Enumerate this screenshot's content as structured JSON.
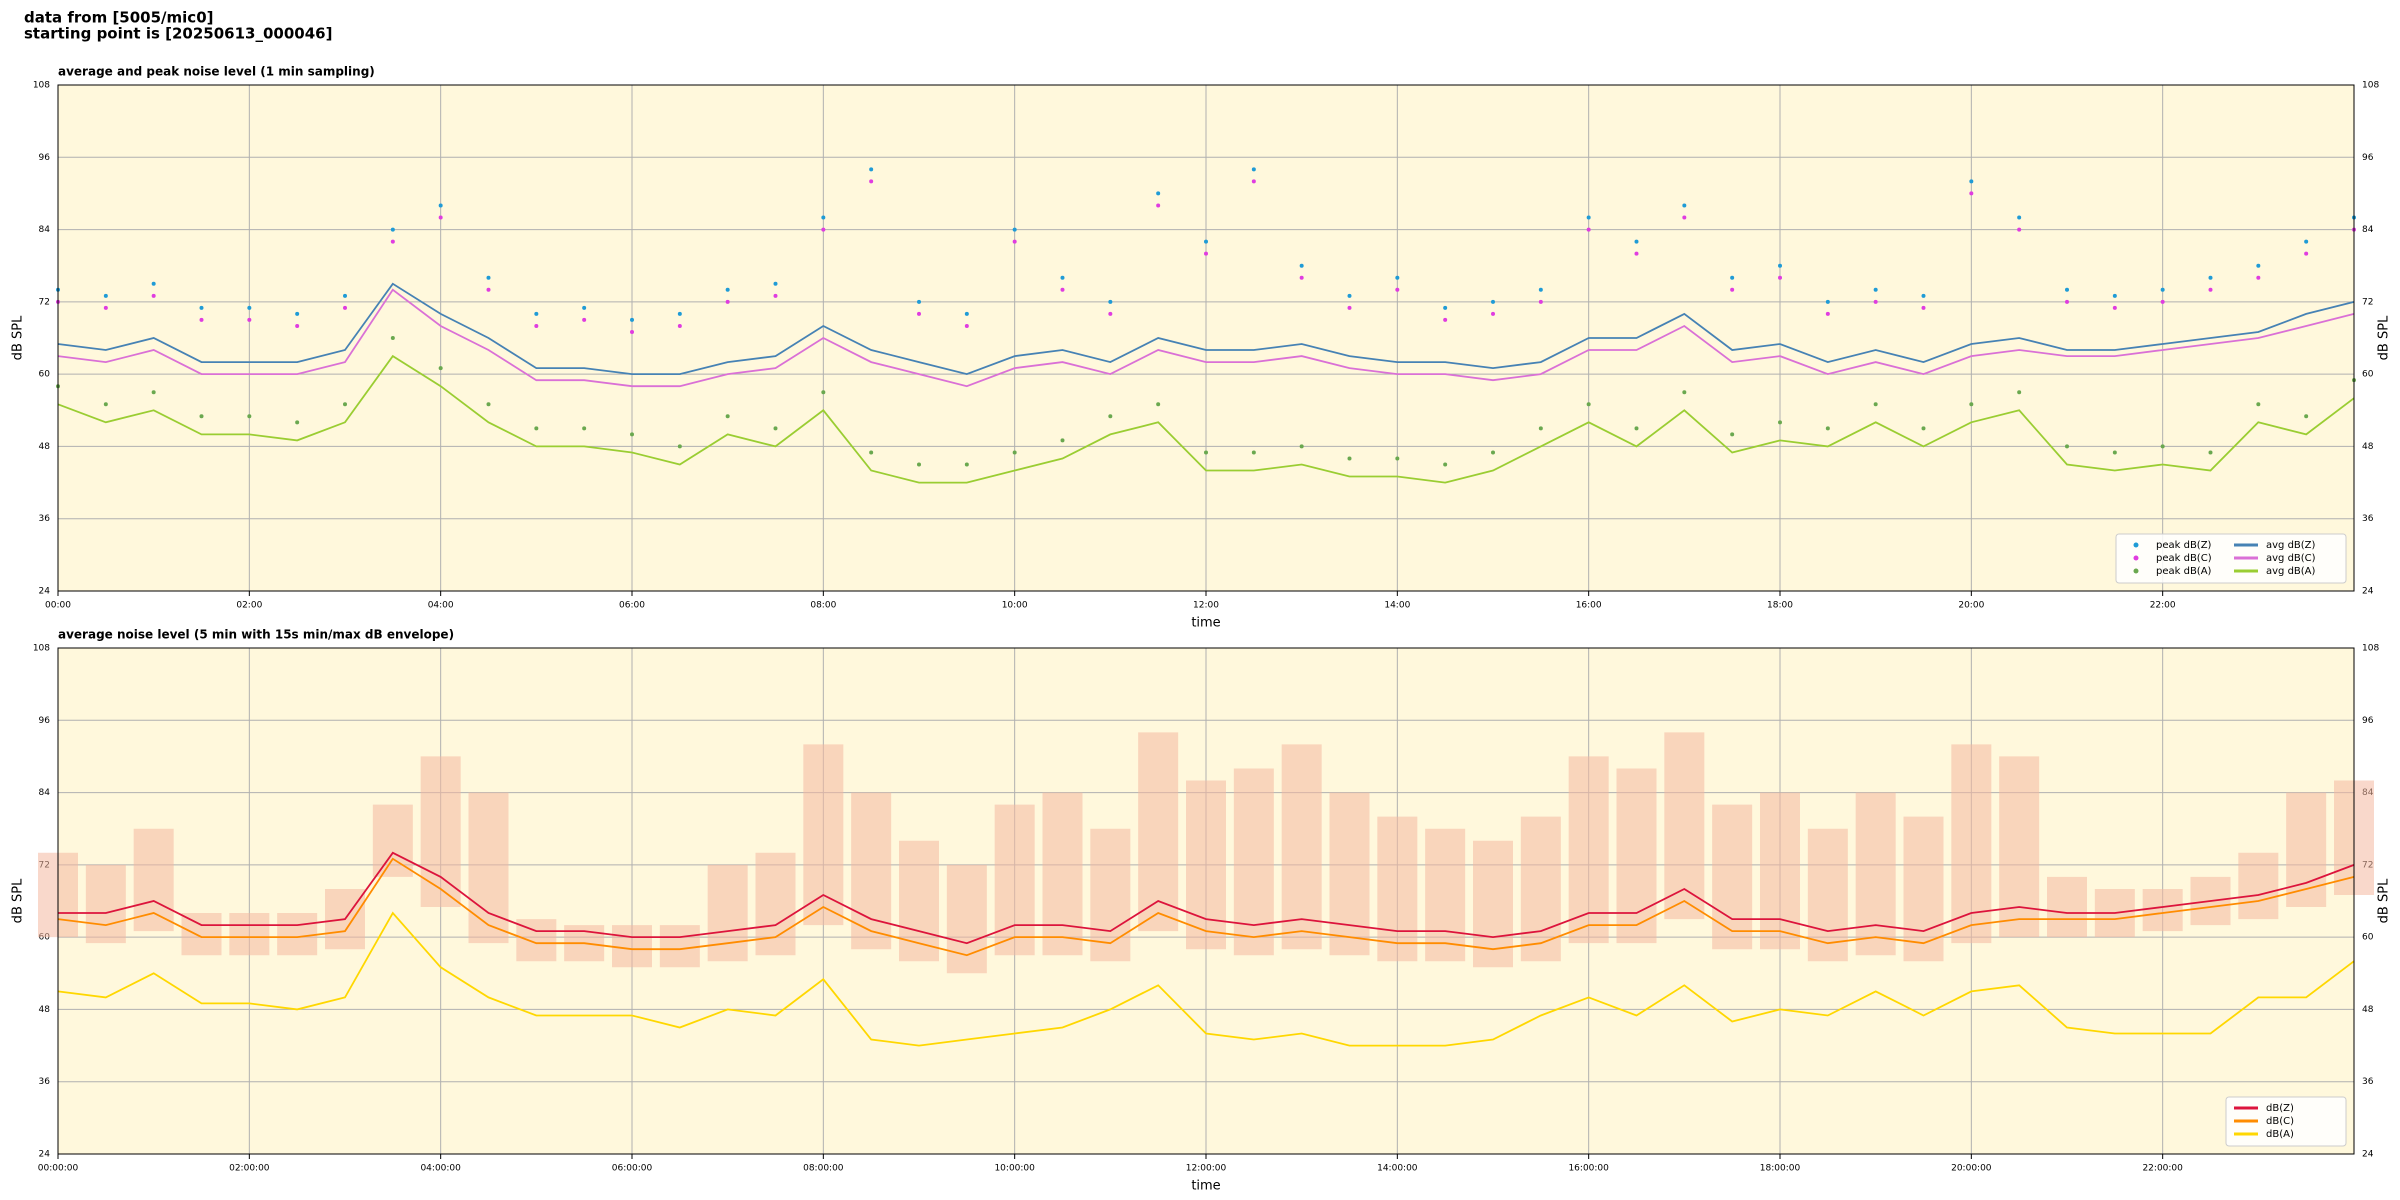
{
  "header": {
    "line1": "data from [5005/mic0]",
    "line2": "starting point is [20250613_000046]"
  },
  "chart_data": [
    {
      "type": "line",
      "title": "average and peak noise level (1 min sampling)",
      "xlabel": "time",
      "ylabel": "dB SPL",
      "xlim": [
        0,
        24
      ],
      "ylim": [
        24,
        108
      ],
      "yticks": [
        24,
        36,
        48,
        60,
        72,
        84,
        96,
        108
      ],
      "xticks": [
        {
          "value": 0,
          "label": "00:00"
        },
        {
          "value": 2,
          "label": "02:00"
        },
        {
          "value": 4,
          "label": "04:00"
        },
        {
          "value": 6,
          "label": "06:00"
        },
        {
          "value": 8,
          "label": "08:00"
        },
        {
          "value": 10,
          "label": "10:00"
        },
        {
          "value": 12,
          "label": "12:00"
        },
        {
          "value": 14,
          "label": "14:00"
        },
        {
          "value": 16,
          "label": "16:00"
        },
        {
          "value": 18,
          "label": "18:00"
        },
        {
          "value": 20,
          "label": "20:00"
        },
        {
          "value": 22,
          "label": "22:00"
        }
      ],
      "grid": true,
      "legend": "lower right",
      "legend_columns": 2,
      "background": "#fff8dc",
      "x": [
        0,
        0.5,
        1,
        1.5,
        2,
        2.5,
        3,
        3.5,
        4,
        4.5,
        5,
        5.5,
        6,
        6.5,
        7,
        7.5,
        8,
        8.5,
        9,
        9.5,
        10,
        10.5,
        11,
        11.5,
        12,
        12.5,
        13,
        13.5,
        14,
        14.5,
        15,
        15.5,
        16,
        16.5,
        17,
        17.5,
        18,
        18.5,
        19,
        19.5,
        20,
        20.5,
        21,
        21.5,
        22,
        22.5,
        23,
        23.5,
        24
      ],
      "series": [
        {
          "name": "peak dB(Z)",
          "kind": "points",
          "color": "#1f9bd6",
          "values": [
            74,
            73,
            75,
            71,
            71,
            70,
            73,
            84,
            88,
            76,
            70,
            71,
            69,
            70,
            74,
            75,
            86,
            94,
            72,
            70,
            84,
            76,
            72,
            90,
            82,
            94,
            78,
            73,
            76,
            71,
            72,
            74,
            86,
            82,
            88,
            76,
            78,
            72,
            74,
            73,
            92,
            86,
            74,
            73,
            74,
            76,
            78,
            82,
            86
          ]
        },
        {
          "name": "peak dB(C)",
          "kind": "points",
          "color": "#e03ce0",
          "values": [
            72,
            71,
            73,
            69,
            69,
            68,
            71,
            82,
            86,
            74,
            68,
            69,
            67,
            68,
            72,
            73,
            84,
            92,
            70,
            68,
            82,
            74,
            70,
            88,
            80,
            92,
            76,
            71,
            74,
            69,
            70,
            72,
            84,
            80,
            86,
            74,
            76,
            70,
            72,
            71,
            90,
            84,
            72,
            71,
            72,
            74,
            76,
            80,
            84
          ]
        },
        {
          "name": "peak dB(A)",
          "kind": "points",
          "color": "#6aa84f",
          "values": [
            58,
            55,
            57,
            53,
            53,
            52,
            55,
            66,
            61,
            55,
            51,
            51,
            50,
            48,
            53,
            51,
            57,
            47,
            45,
            45,
            47,
            49,
            53,
            55,
            47,
            47,
            48,
            46,
            46,
            45,
            47,
            51,
            55,
            51,
            57,
            50,
            52,
            51,
            55,
            51,
            55,
            57,
            48,
            47,
            48,
            47,
            55,
            53,
            59
          ]
        },
        {
          "name": "avg dB(Z)",
          "kind": "line",
          "color": "#4682b4",
          "values": [
            65,
            64,
            66,
            62,
            62,
            62,
            64,
            75,
            70,
            66,
            61,
            61,
            60,
            60,
            62,
            63,
            68,
            64,
            62,
            60,
            63,
            64,
            62,
            66,
            64,
            64,
            65,
            63,
            62,
            62,
            61,
            62,
            66,
            66,
            70,
            64,
            65,
            62,
            64,
            62,
            65,
            66,
            64,
            64,
            65,
            66,
            67,
            70,
            72
          ]
        },
        {
          "name": "avg dB(C)",
          "kind": "line",
          "color": "#da70d6",
          "values": [
            63,
            62,
            64,
            60,
            60,
            60,
            62,
            74,
            68,
            64,
            59,
            59,
            58,
            58,
            60,
            61,
            66,
            62,
            60,
            58,
            61,
            62,
            60,
            64,
            62,
            62,
            63,
            61,
            60,
            60,
            59,
            60,
            64,
            64,
            68,
            62,
            63,
            60,
            62,
            60,
            63,
            64,
            63,
            63,
            64,
            65,
            66,
            68,
            70
          ]
        },
        {
          "name": "avg dB(A)",
          "kind": "line",
          "color": "#9acd32",
          "values": [
            55,
            52,
            54,
            50,
            50,
            49,
            52,
            63,
            58,
            52,
            48,
            48,
            47,
            45,
            50,
            48,
            54,
            44,
            42,
            42,
            44,
            46,
            50,
            52,
            44,
            44,
            45,
            43,
            43,
            42,
            44,
            48,
            52,
            48,
            54,
            47,
            49,
            48,
            52,
            48,
            52,
            54,
            45,
            44,
            45,
            44,
            52,
            50,
            56
          ]
        }
      ]
    },
    {
      "type": "line",
      "title": "average noise level (5 min with 15s min/max dB envelope)",
      "xlabel": "time",
      "ylabel": "dB SPL",
      "xlim": [
        0,
        24
      ],
      "ylim": [
        24,
        108
      ],
      "yticks": [
        24,
        36,
        48,
        60,
        72,
        84,
        96,
        108
      ],
      "xticks": [
        {
          "value": 0,
          "label": "00:00:00"
        },
        {
          "value": 2,
          "label": "02:00:00"
        },
        {
          "value": 4,
          "label": "04:00:00"
        },
        {
          "value": 6,
          "label": "06:00:00"
        },
        {
          "value": 8,
          "label": "08:00:00"
        },
        {
          "value": 10,
          "label": "10:00:00"
        },
        {
          "value": 12,
          "label": "12:00:00"
        },
        {
          "value": 14,
          "label": "14:00:00"
        },
        {
          "value": 16,
          "label": "16:00:00"
        },
        {
          "value": 18,
          "label": "18:00:00"
        },
        {
          "value": 20,
          "label": "20:00:00"
        },
        {
          "value": 22,
          "label": "22:00:00"
        }
      ],
      "grid": true,
      "legend": "lower right",
      "legend_columns": 1,
      "background": "#fff8dc",
      "x": [
        0,
        0.5,
        1,
        1.5,
        2,
        2.5,
        3,
        3.5,
        4,
        4.5,
        5,
        5.5,
        6,
        6.5,
        7,
        7.5,
        8,
        8.5,
        9,
        9.5,
        10,
        10.5,
        11,
        11.5,
        12,
        12.5,
        13,
        13.5,
        14,
        14.5,
        15,
        15.5,
        16,
        16.5,
        17,
        17.5,
        18,
        18.5,
        19,
        19.5,
        20,
        20.5,
        21,
        21.5,
        22,
        22.5,
        23,
        23.5,
        24
      ],
      "envelope": {
        "color": "#f4b8a0",
        "low": [
          60,
          59,
          61,
          57,
          57,
          57,
          58,
          70,
          65,
          59,
          56,
          56,
          55,
          55,
          56,
          57,
          62,
          58,
          56,
          54,
          57,
          57,
          56,
          61,
          58,
          57,
          58,
          57,
          56,
          56,
          55,
          56,
          59,
          59,
          63,
          58,
          58,
          56,
          57,
          56,
          59,
          60,
          60,
          60,
          61,
          62,
          63,
          65,
          67
        ],
        "high": [
          74,
          72,
          78,
          64,
          64,
          64,
          68,
          82,
          90,
          84,
          63,
          62,
          62,
          62,
          72,
          74,
          92,
          84,
          76,
          72,
          82,
          84,
          78,
          94,
          86,
          88,
          92,
          84,
          80,
          78,
          76,
          80,
          90,
          88,
          94,
          82,
          84,
          78,
          84,
          80,
          92,
          90,
          70,
          68,
          68,
          70,
          74,
          84,
          86
        ]
      },
      "series": [
        {
          "name": "dB(Z)",
          "kind": "line",
          "color": "#dc143c",
          "values": [
            64,
            64,
            66,
            62,
            62,
            62,
            63,
            74,
            70,
            64,
            61,
            61,
            60,
            60,
            61,
            62,
            67,
            63,
            61,
            59,
            62,
            62,
            61,
            66,
            63,
            62,
            63,
            62,
            61,
            61,
            60,
            61,
            64,
            64,
            68,
            63,
            63,
            61,
            62,
            61,
            64,
            65,
            64,
            64,
            65,
            66,
            67,
            69,
            72
          ]
        },
        {
          "name": "dB(C)",
          "kind": "line",
          "color": "#ff8c00",
          "values": [
            63,
            62,
            64,
            60,
            60,
            60,
            61,
            73,
            68,
            62,
            59,
            59,
            58,
            58,
            59,
            60,
            65,
            61,
            59,
            57,
            60,
            60,
            59,
            64,
            61,
            60,
            61,
            60,
            59,
            59,
            58,
            59,
            62,
            62,
            66,
            61,
            61,
            59,
            60,
            59,
            62,
            63,
            63,
            63,
            64,
            65,
            66,
            68,
            70
          ]
        },
        {
          "name": "dB(A)",
          "kind": "line",
          "color": "#ffd700",
          "values": [
            51,
            50,
            54,
            49,
            49,
            48,
            50,
            64,
            55,
            50,
            47,
            47,
            47,
            45,
            48,
            47,
            53,
            43,
            42,
            43,
            44,
            45,
            48,
            52,
            44,
            43,
            44,
            42,
            42,
            42,
            43,
            47,
            50,
            47,
            52,
            46,
            48,
            47,
            51,
            47,
            51,
            52,
            45,
            44,
            44,
            44,
            50,
            50,
            56
          ]
        }
      ]
    }
  ]
}
